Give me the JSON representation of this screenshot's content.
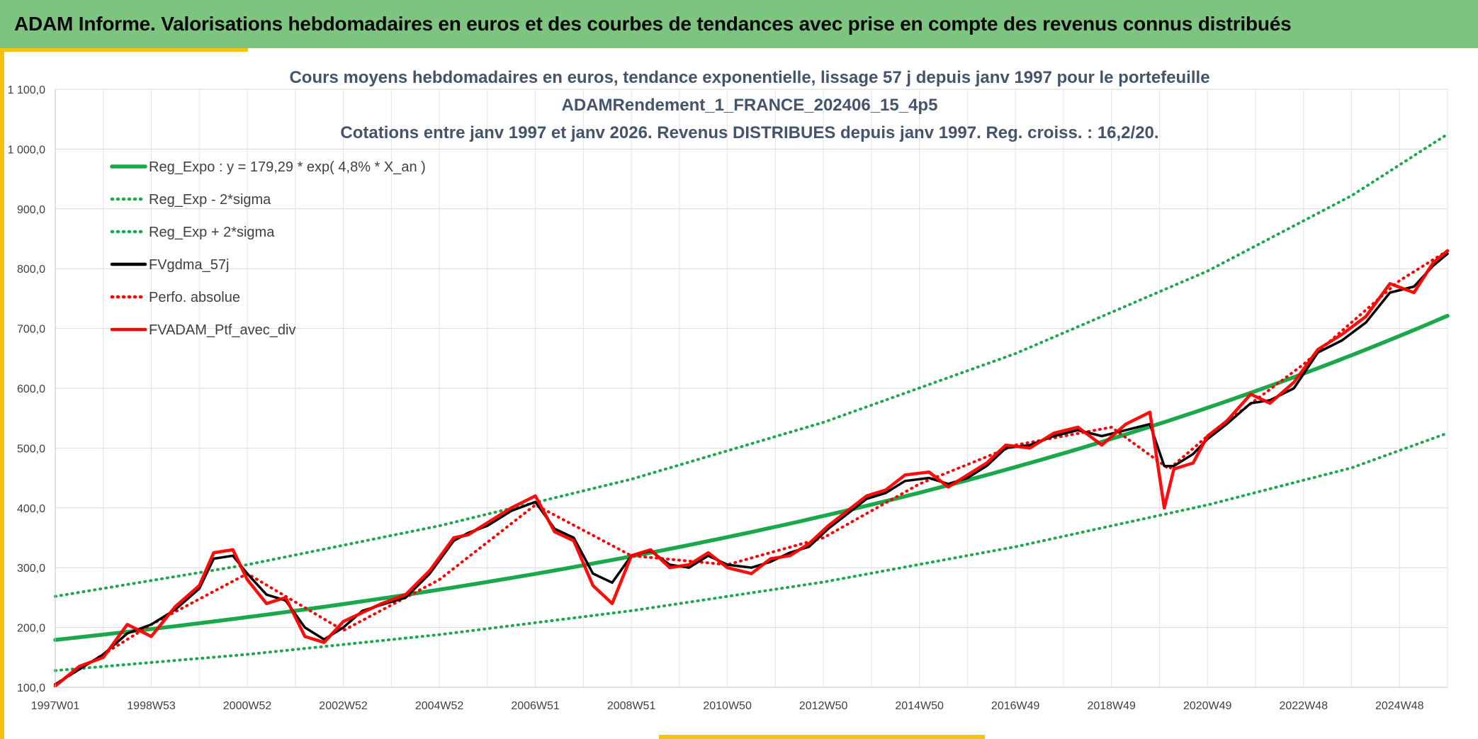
{
  "header": {
    "title": "ADAM Informe. Valorisations hebdomadaires en euros et des courbes de tendances avec prise en compte des revenus connus distribués"
  },
  "colors": {
    "header_bg": "#7cc47f",
    "accent": "#f6c20c",
    "trend": "#1aa84b",
    "band": "#1aa84b",
    "smoothed": "#000000",
    "portfolio": "#ff0000"
  },
  "chart_data": {
    "type": "line",
    "title": [
      "Cours moyens hebdomadaires en euros, tendance exponentielle, lissage 57 j depuis janv 1997 pour le portefeuille",
      "ADAMRendement_1_FRANCE_202406_15_4p5",
      "Cotations entre janv 1997 et janv 2026. Revenus DISTRIBUES depuis janv 1997. Reg. croiss. : 16,2/20."
    ],
    "xlabel": "",
    "ylabel": "",
    "ylim": [
      100,
      1100
    ],
    "xlim": [
      1997.0,
      2026.0
    ],
    "grid": true,
    "legend_position": "top-left",
    "x_ticks": [
      "1997W01",
      "1998W53",
      "2000W52",
      "2002W52",
      "2004W52",
      "2006W51",
      "2008W51",
      "2010W50",
      "2012W50",
      "2014W50",
      "2016W49",
      "2018W49",
      "2020W49",
      "2022W48",
      "2024W48"
    ],
    "y_ticks": [
      "100,0",
      "200,0",
      "300,0",
      "400,0",
      "500,0",
      "600,0",
      "700,0",
      "800,0",
      "900,0",
      "1 000,0",
      "1 100,0"
    ],
    "series": [
      {
        "name": "Reg_Expo : y = 179,29 * exp( 4,8% *  X_an )",
        "style": "solid",
        "color": "#1aa84b",
        "formula": {
          "a": 179.29,
          "rate": 0.048,
          "x0": 1997.0
        },
        "x": [
          1997.0,
          2000.0,
          2003.0,
          2006.0,
          2009.0,
          2012.0,
          2015.0,
          2018.0,
          2021.0,
          2024.0,
          2026.0
        ],
        "values": [
          179.3,
          206.6,
          238.1,
          274.4,
          316.2,
          364.4,
          420.0,
          484.0,
          557.8,
          642.8,
          709.1
        ]
      },
      {
        "name": "Reg_Exp - 2*sigma",
        "style": "dotted",
        "color": "#1aa84b",
        "x": [
          1997.0,
          2001.0,
          2005.0,
          2009.0,
          2013.0,
          2017.0,
          2021.0,
          2024.0,
          2026.0
        ],
        "values": [
          128,
          155,
          188,
          228,
          276,
          335,
          405,
          467,
          525
        ]
      },
      {
        "name": "Reg_Exp + 2*sigma",
        "style": "dotted",
        "color": "#1aa84b",
        "x": [
          1997.0,
          2001.0,
          2005.0,
          2009.0,
          2013.0,
          2017.0,
          2021.0,
          2024.0,
          2026.0
        ],
        "values": [
          252,
          305,
          370,
          448,
          543,
          658,
          796,
          922,
          1025
        ]
      },
      {
        "name": "FVgdma_57j",
        "style": "solid",
        "color": "#000000",
        "x": [
          1997.0,
          1997.5,
          1998.0,
          1998.5,
          1999.0,
          1999.5,
          2000.0,
          2000.3,
          2000.7,
          2001.0,
          2001.4,
          2001.8,
          2002.2,
          2002.6,
          2003.0,
          2003.4,
          2003.8,
          2004.3,
          2004.8,
          2005.3,
          2005.6,
          2006.0,
          2006.5,
          2007.0,
          2007.4,
          2007.8,
          2008.2,
          2008.6,
          2009.0,
          2009.4,
          2009.8,
          2010.2,
          2010.6,
          2011.0,
          2011.5,
          2011.9,
          2012.3,
          2012.7,
          2013.1,
          2013.5,
          2013.9,
          2014.3,
          2014.7,
          2015.2,
          2015.6,
          2016.0,
          2016.4,
          2016.8,
          2017.3,
          2017.8,
          2018.3,
          2018.8,
          2019.3,
          2019.8,
          2020.1,
          2020.3,
          2020.7,
          2021.0,
          2021.4,
          2021.9,
          2022.3,
          2022.8,
          2023.3,
          2023.8,
          2024.3,
          2024.8,
          2025.3,
          2025.7,
          2026.0
        ],
        "values": [
          105,
          130,
          155,
          190,
          205,
          230,
          265,
          315,
          320,
          290,
          255,
          245,
          200,
          180,
          200,
          228,
          238,
          250,
          290,
          345,
          358,
          370,
          395,
          410,
          365,
          350,
          290,
          275,
          320,
          328,
          305,
          300,
          320,
          305,
          300,
          310,
          325,
          335,
          365,
          390,
          415,
          425,
          445,
          450,
          440,
          450,
          470,
          500,
          505,
          520,
          530,
          520,
          530,
          540,
          470,
          470,
          490,
          515,
          540,
          575,
          580,
          600,
          660,
          680,
          710,
          760,
          770,
          805,
          825
        ]
      },
      {
        "name": "Perfo. absolue",
        "style": "dotted",
        "color": "#ff0000",
        "x": [
          1997.0,
          1999.0,
          2001.0,
          2003.0,
          2005.0,
          2007.0,
          2009.0,
          2011.0,
          2013.0,
          2015.0,
          2017.0,
          2019.0,
          2020.2,
          2021.0,
          2023.0,
          2025.0,
          2026.0
        ],
        "values": [
          105,
          205,
          290,
          195,
          280,
          405,
          320,
          305,
          350,
          440,
          505,
          535,
          465,
          520,
          640,
          780,
          830
        ]
      },
      {
        "name": "FVADAM_Ptf_avec_div",
        "style": "solid",
        "color": "#ff0000",
        "x": [
          1997.0,
          1997.5,
          1998.0,
          1998.5,
          1999.0,
          1999.5,
          2000.0,
          2000.3,
          2000.7,
          2001.0,
          2001.4,
          2001.8,
          2002.2,
          2002.6,
          2003.0,
          2003.4,
          2003.8,
          2004.3,
          2004.8,
          2005.3,
          2005.6,
          2006.0,
          2006.5,
          2007.0,
          2007.4,
          2007.8,
          2008.2,
          2008.6,
          2009.0,
          2009.4,
          2009.8,
          2010.2,
          2010.6,
          2011.0,
          2011.5,
          2011.9,
          2012.3,
          2012.7,
          2013.1,
          2013.5,
          2013.9,
          2014.3,
          2014.7,
          2015.2,
          2015.6,
          2016.0,
          2016.4,
          2016.8,
          2017.3,
          2017.8,
          2018.3,
          2018.8,
          2019.3,
          2019.8,
          2020.1,
          2020.3,
          2020.7,
          2021.0,
          2021.4,
          2021.9,
          2022.3,
          2022.8,
          2023.3,
          2023.8,
          2024.3,
          2024.8,
          2025.3,
          2025.7,
          2026.0
        ],
        "values": [
          102,
          135,
          150,
          205,
          185,
          235,
          270,
          325,
          330,
          280,
          240,
          250,
          185,
          175,
          210,
          225,
          240,
          255,
          295,
          350,
          355,
          375,
          400,
          420,
          360,
          345,
          270,
          240,
          320,
          330,
          300,
          305,
          325,
          300,
          290,
          315,
          320,
          340,
          370,
          395,
          420,
          430,
          455,
          460,
          435,
          455,
          475,
          505,
          500,
          525,
          535,
          505,
          540,
          560,
          400,
          465,
          475,
          520,
          545,
          590,
          575,
          610,
          665,
          690,
          720,
          775,
          760,
          810,
          830
        ]
      }
    ]
  }
}
